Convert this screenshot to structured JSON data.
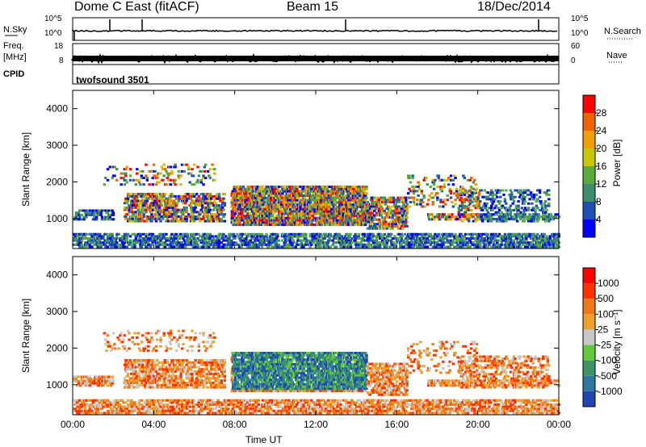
{
  "header": {
    "station": "Dome C East (fitACF)",
    "beam": "Beam 15",
    "date": "18/Dec/2014"
  },
  "strips": {
    "nsky_label": "N.Sky",
    "nsky_ticks": [
      "10^5",
      "10^0"
    ],
    "nsearch_label": "N.Search",
    "nsearch_ticks": [
      "10^5",
      "10^0"
    ],
    "freq_label": "Freq.",
    "freq_unit": "[MHz]",
    "freq_ticks": [
      "18",
      "8"
    ],
    "nave_label": "Nave",
    "nave_ticks": [
      "60",
      "0"
    ],
    "cpid_label": "CPID",
    "cpid_value": "twofsound 3501"
  },
  "colors": {
    "power_scale": [
      "#0000ff",
      "#1e4fb4",
      "#3c8c6e",
      "#5aaa3c",
      "#c8c800",
      "#f0a000",
      "#f06400",
      "#ff0000"
    ],
    "velocity_scale": [
      "#1e46b4",
      "#2d78a0",
      "#3c9664",
      "#64c83c",
      "#c8c8c8",
      "#f0a028",
      "#f07814",
      "#ff3200",
      "#ff0000"
    ]
  },
  "chart_data": [
    {
      "type": "heatmap",
      "title": "",
      "xlabel": "",
      "ylabel": "Slant Range [km]",
      "xlim": [
        "00:00",
        "00:00"
      ],
      "ylim": [
        180,
        4500
      ],
      "y_ticks": [
        "1000",
        "2000",
        "3000",
        "4000"
      ],
      "colorbar_label": "Power [dB]",
      "colorbar_ticks": [
        "4",
        "8",
        "12",
        "16",
        "20",
        "24",
        "28"
      ],
      "colorbar_range": [
        0,
        32
      ]
    },
    {
      "type": "heatmap",
      "title": "",
      "xlabel": "Time UT",
      "ylabel": "Slant Range [km]",
      "x_ticks": [
        "00:00",
        "04:00",
        "08:00",
        "12:00",
        "16:00",
        "20:00",
        "00:00"
      ],
      "ylim": [
        180,
        4500
      ],
      "y_ticks": [
        "1000",
        "2000",
        "3000",
        "4000"
      ],
      "colorbar_label": "Velocity [m s⁻¹]",
      "colorbar_ticks": [
        "1000",
        "500",
        "100",
        "25",
        "-25",
        "-100",
        "-500",
        "-1000"
      ]
    }
  ]
}
